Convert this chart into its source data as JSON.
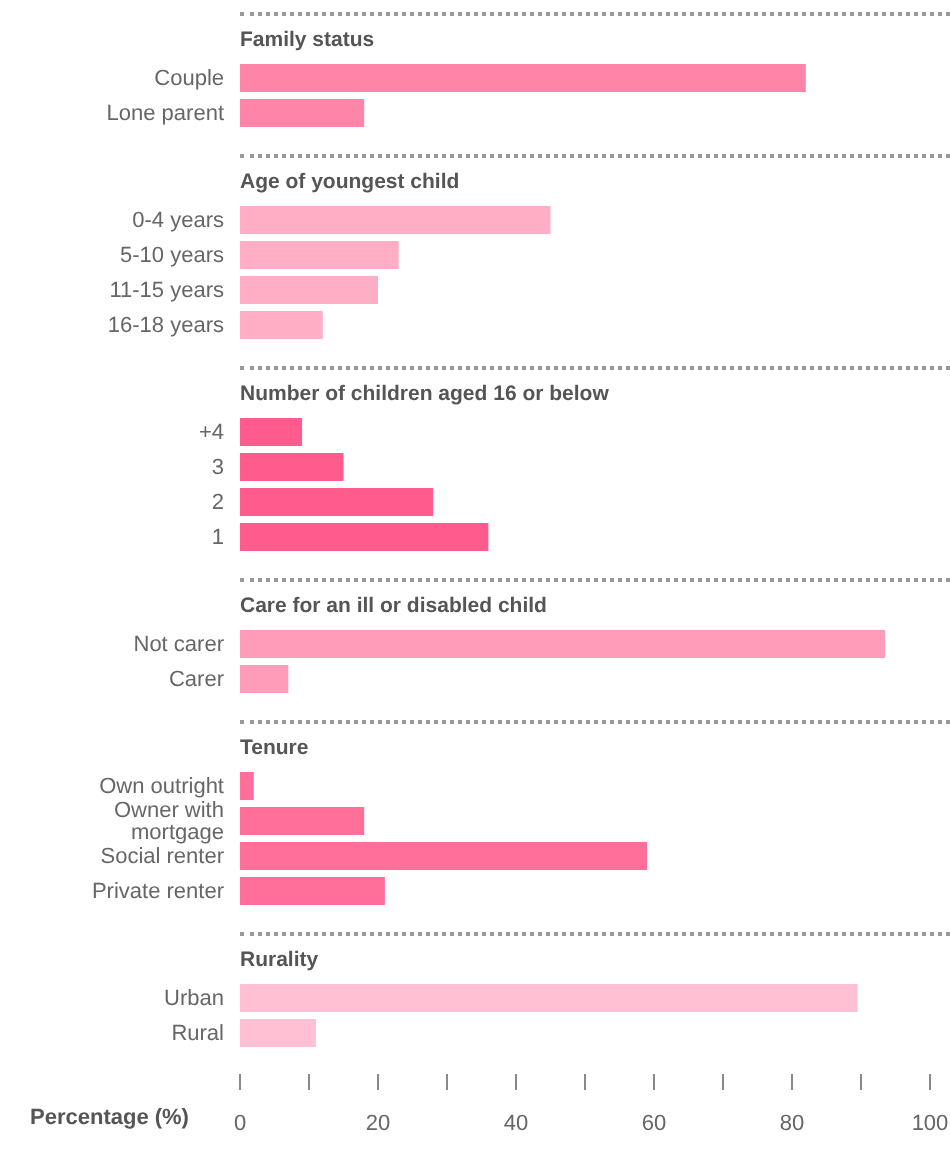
{
  "chart_data": [
    {
      "type": "bar",
      "orientation": "horizontal",
      "title": "Family status",
      "categories": [
        "Couple",
        "Lone parent"
      ],
      "values": [
        82,
        18
      ],
      "color": "#ff85a8",
      "xlim": [
        0,
        100
      ],
      "tick_labels": "y"
    },
    {
      "type": "bar",
      "orientation": "horizontal",
      "title": "Age of youngest child",
      "categories": [
        "0-4 years",
        "5-10 years",
        "11-15 years",
        "16-18 years"
      ],
      "values": [
        45,
        23,
        20,
        12
      ],
      "color": "#ffaec6",
      "xlim": [
        0,
        100
      ],
      "tick_labels": "y"
    },
    {
      "type": "bar",
      "orientation": "horizontal",
      "title": "Number of children aged 16 or below",
      "categories": [
        "+4",
        "3",
        "2",
        "1"
      ],
      "values": [
        9,
        15,
        28,
        36
      ],
      "color": "#ff5c8d",
      "xlim": [
        0,
        100
      ],
      "tick_labels": "y"
    },
    {
      "type": "bar",
      "orientation": "horizontal",
      "title": "Care for an ill or disabled child",
      "categories": [
        "Not carer",
        "Carer"
      ],
      "values": [
        93.5,
        7
      ],
      "color": "#ff9cba",
      "xlim": [
        0,
        100
      ],
      "tick_labels": "y"
    },
    {
      "type": "bar",
      "orientation": "horizontal",
      "title": "Tenure",
      "categories": [
        "Own outright",
        "Owner with mortgage",
        "Social renter",
        "Private renter"
      ],
      "values": [
        2,
        18,
        59,
        21
      ],
      "color": "#ff6f9a",
      "xlim": [
        0,
        100
      ],
      "tick_labels": "y"
    },
    {
      "type": "bar",
      "orientation": "horizontal",
      "title": "Rurality",
      "categories": [
        "Urban",
        "Rural"
      ],
      "values": [
        89.5,
        11
      ],
      "color": "#ffc0d3",
      "xlim": [
        0,
        100
      ],
      "xlabel": "Percentage (%)",
      "xticks": [
        0,
        {
          "value": 10,
          "label": null
        },
        20,
        {
          "value": 30,
          "label": null
        },
        40,
        {
          "value": 50,
          "label": null
        },
        60,
        {
          "value": 70,
          "label": null
        },
        80,
        {
          "value": 90,
          "label": null
        },
        100
      ]
    }
  ]
}
